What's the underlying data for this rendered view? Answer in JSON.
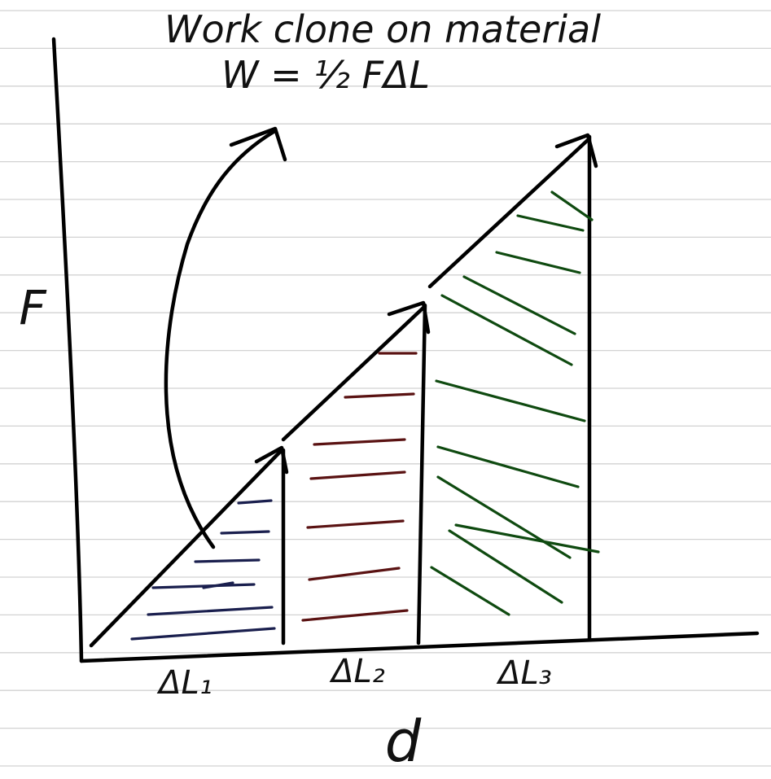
{
  "title": "Work clone on material",
  "formula": "W = ½ FΔL",
  "y_axis_label": "F",
  "x_axis_label": "d",
  "segments": [
    {
      "label": "ΔL₁",
      "hatch_color": "#1a1f4e"
    },
    {
      "label": "ΔL₂",
      "hatch_color": "#5a1212"
    },
    {
      "label": "ΔL₃",
      "hatch_color": "#0f4a10"
    }
  ],
  "colors": {
    "ink": "#000000",
    "notebook_rule": "#d2d2d2",
    "background": "#ffffff"
  }
}
